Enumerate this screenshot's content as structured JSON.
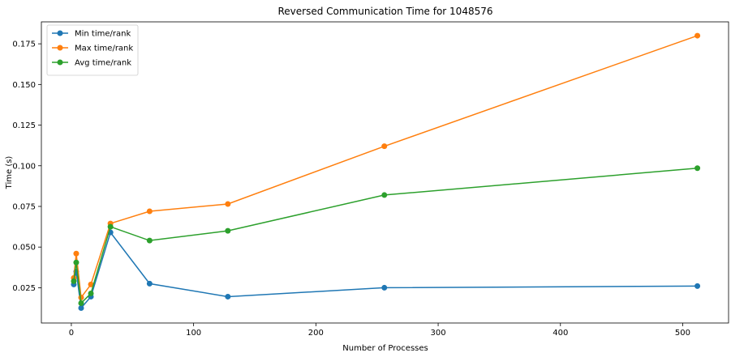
{
  "chart_data": {
    "type": "line",
    "title": "Reversed Communication Time for 1048576",
    "xlabel": "Number of Processes",
    "ylabel": "Time (s)",
    "x": [
      2,
      4,
      8,
      16,
      32,
      64,
      128,
      256,
      512
    ],
    "xlim": [
      -24.5,
      537.5
    ],
    "ylim": [
      0.0033,
      0.1885
    ],
    "xticks": [
      0,
      100,
      200,
      300,
      400,
      500
    ],
    "xtick_labels": [
      "0",
      "100",
      "200",
      "300",
      "400",
      "500"
    ],
    "yticks": [
      0.025,
      0.05,
      0.075,
      0.1,
      0.125,
      0.15,
      0.175
    ],
    "ytick_labels": [
      "0.025",
      "0.050",
      "0.075",
      "0.100",
      "0.125",
      "0.150",
      "0.175"
    ],
    "grid": false,
    "legend_position": "top-left",
    "series": [
      {
        "name": "Min time/rank",
        "color": "#1f77b4",
        "values": [
          0.027,
          0.035,
          0.0125,
          0.0195,
          0.059,
          0.0275,
          0.0195,
          0.025,
          0.026
        ]
      },
      {
        "name": "Max time/rank",
        "color": "#ff7f0e",
        "values": [
          0.031,
          0.046,
          0.019,
          0.027,
          0.0645,
          0.072,
          0.0765,
          0.112,
          0.18
        ]
      },
      {
        "name": "Avg time/rank",
        "color": "#2ca02c",
        "values": [
          0.029,
          0.0405,
          0.0155,
          0.0215,
          0.0625,
          0.054,
          0.06,
          0.082,
          0.0985
        ]
      }
    ]
  }
}
